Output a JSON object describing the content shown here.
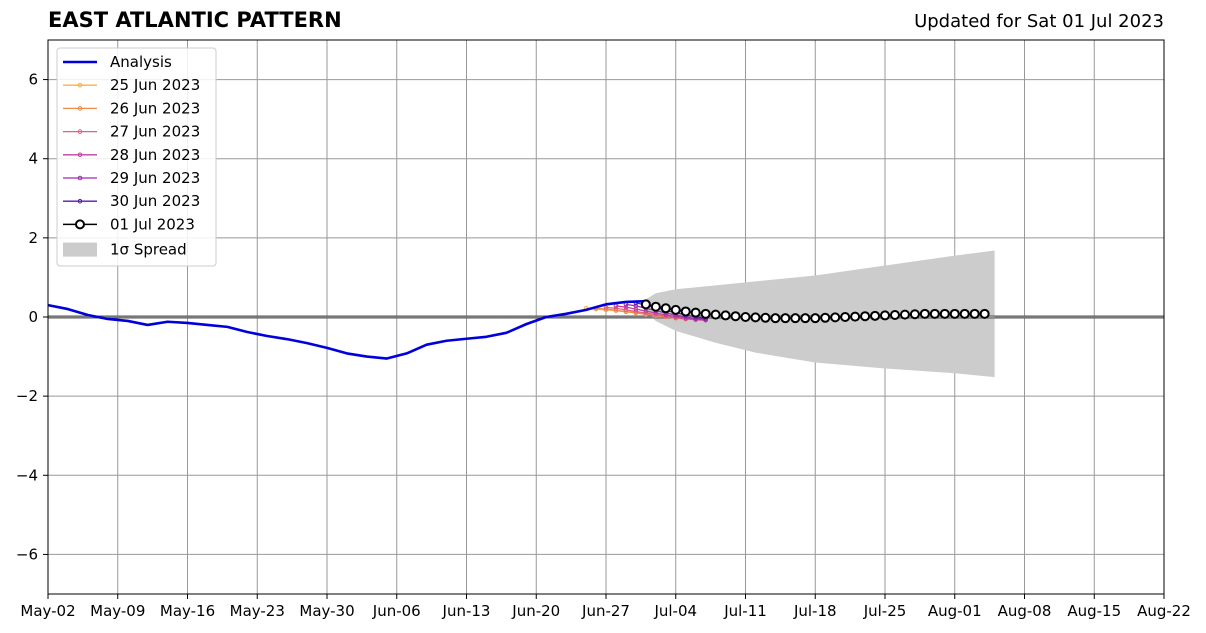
{
  "chart_data": {
    "type": "line",
    "title": "EAST ATLANTIC PATTERN",
    "subtitle": "Updated for Sat 01 Jul 2023",
    "xlabel": "",
    "ylabel": "",
    "ylim": [
      -7,
      7
    ],
    "xlim": [
      "2023-05-02",
      "2023-08-22"
    ],
    "x_ticks": [
      "May-02",
      "May-09",
      "May-16",
      "May-23",
      "May-30",
      "Jun-06",
      "Jun-13",
      "Jun-20",
      "Jun-27",
      "Jul-04",
      "Jul-11",
      "Jul-18",
      "Jul-25",
      "Aug-01",
      "Aug-08",
      "Aug-15",
      "Aug-22"
    ],
    "y_ticks": [
      -6,
      -4,
      -2,
      0,
      2,
      4,
      6
    ],
    "y_tick_labels": [
      "−6",
      "−4",
      "−2",
      "0",
      "2",
      "4",
      "6"
    ],
    "grid": true,
    "zero_line": 0,
    "legend_position": "top-left",
    "analysis": {
      "name": "Analysis",
      "color": "#0000dd",
      "x": [
        "2023-05-02",
        "2023-05-04",
        "2023-05-06",
        "2023-05-08",
        "2023-05-10",
        "2023-05-12",
        "2023-05-14",
        "2023-05-16",
        "2023-05-18",
        "2023-05-20",
        "2023-05-22",
        "2023-05-24",
        "2023-05-26",
        "2023-05-28",
        "2023-05-30",
        "2023-06-01",
        "2023-06-03",
        "2023-06-05",
        "2023-06-07",
        "2023-06-09",
        "2023-06-11",
        "2023-06-13",
        "2023-06-15",
        "2023-06-17",
        "2023-06-19",
        "2023-06-21",
        "2023-06-23",
        "2023-06-25",
        "2023-06-27",
        "2023-06-29",
        "2023-07-01"
      ],
      "y": [
        0.3,
        0.2,
        0.05,
        -0.05,
        -0.1,
        -0.2,
        -0.12,
        -0.15,
        -0.2,
        -0.25,
        -0.38,
        -0.48,
        -0.56,
        -0.66,
        -0.78,
        -0.92,
        -1.0,
        -1.05,
        -0.92,
        -0.7,
        -0.6,
        -0.55,
        -0.5,
        -0.4,
        -0.18,
        0.0,
        0.08,
        0.18,
        0.32,
        0.38,
        0.4
      ]
    },
    "forecasts": [
      {
        "name": "25 Jun 2023",
        "color": "#f5b041",
        "start": "2023-06-25",
        "values": [
          0.22,
          0.2,
          0.18,
          0.16,
          0.13,
          0.1,
          0.07,
          0.04,
          0.01,
          -0.02,
          -0.04,
          -0.05
        ]
      },
      {
        "name": "26 Jun 2023",
        "color": "#ee8a4a",
        "start": "2023-06-26",
        "values": [
          0.22,
          0.2,
          0.17,
          0.14,
          0.11,
          0.07,
          0.03,
          0.0,
          -0.03,
          -0.05,
          -0.06
        ]
      },
      {
        "name": "27 Jun 2023",
        "color": "#e0607e",
        "start": "2023-06-27",
        "values": [
          0.24,
          0.22,
          0.18,
          0.14,
          0.1,
          0.06,
          0.02,
          -0.02,
          -0.05,
          -0.07,
          -0.08
        ]
      },
      {
        "name": "28 Jun 2023",
        "color": "#c2409a",
        "start": "2023-06-28",
        "values": [
          0.28,
          0.25,
          0.2,
          0.15,
          0.1,
          0.05,
          0.01,
          -0.03,
          -0.06,
          -0.08
        ]
      },
      {
        "name": "29 Jun 2023",
        "color": "#9a2bb0",
        "start": "2023-06-29",
        "values": [
          0.32,
          0.28,
          0.22,
          0.16,
          0.1,
          0.05,
          0.0,
          -0.04,
          -0.06
        ]
      },
      {
        "name": "30 Jun 2023",
        "color": "#5a1aa8",
        "start": "2023-06-30",
        "values": [
          0.36,
          0.3,
          0.24,
          0.17,
          0.11,
          0.05,
          0.0,
          -0.03
        ]
      }
    ],
    "latest_forecast": {
      "name": "01 Jul 2023",
      "color": "#000000",
      "start": "2023-07-01",
      "values": [
        0.32,
        0.26,
        0.22,
        0.18,
        0.14,
        0.11,
        0.08,
        0.06,
        0.04,
        0.02,
        0.0,
        -0.01,
        -0.02,
        -0.03,
        -0.03,
        -0.03,
        -0.03,
        -0.03,
        -0.02,
        -0.01,
        0.0,
        0.01,
        0.02,
        0.03,
        0.04,
        0.05,
        0.06,
        0.07,
        0.08,
        0.08,
        0.08,
        0.08,
        0.08,
        0.08,
        0.08
      ]
    },
    "spread": {
      "name": "1σ Spread",
      "color": "#cccccc",
      "x": [
        "2023-07-01",
        "2023-07-02",
        "2023-07-04",
        "2023-07-08",
        "2023-07-12",
        "2023-07-18",
        "2023-07-25",
        "2023-08-01",
        "2023-08-05"
      ],
      "upper": [
        0.45,
        0.6,
        0.7,
        0.8,
        0.9,
        1.05,
        1.3,
        1.55,
        1.68
      ],
      "lower": [
        0.15,
        -0.1,
        -0.35,
        -0.65,
        -0.9,
        -1.15,
        -1.3,
        -1.42,
        -1.52
      ]
    }
  }
}
